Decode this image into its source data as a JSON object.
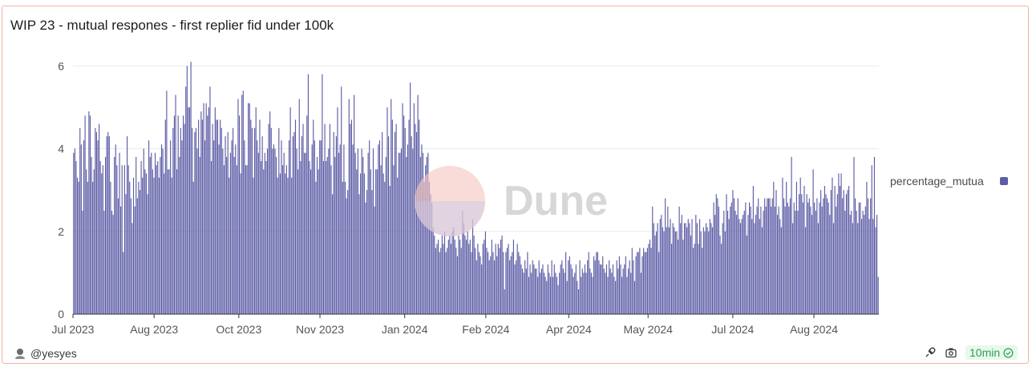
{
  "title": "WIP 23 - mutual respones - first replier fid under 100k",
  "watermark": "Dune",
  "author": "@yesyes",
  "refresh": "10min",
  "colors": {
    "bar": "#5c5ca6",
    "grid": "#ebebeb",
    "accent_badge": "#2f9e4f",
    "border": "#f0b4a6"
  },
  "icons": {
    "avatar": "user-avatar-icon",
    "embed": "embed-icon",
    "camera": "camera-icon",
    "check": "check-circle-icon"
  },
  "chart_data": {
    "type": "bar",
    "title": "WIP 23 - mutual respones - first replier fid under 100k",
    "xlabel": "",
    "ylabel": "",
    "ylim": [
      0,
      6.2
    ],
    "yticks": [
      0,
      2,
      4,
      6
    ],
    "grid": true,
    "legend_position": "right",
    "x_start": "2023-07-01",
    "x_end": "2024-09-20",
    "xtick_labels": [
      "Jul 2023",
      "Aug 2023",
      "Oct 2023",
      "Nov 2023",
      "Jan 2024",
      "Feb 2024",
      "Apr 2024",
      "May 2024",
      "Jul 2024",
      "Aug 2024"
    ],
    "xtick_dates": [
      "2023-07-01",
      "2023-08-15",
      "2023-10-01",
      "2023-11-15",
      "2024-01-01",
      "2024-02-15",
      "2024-04-01",
      "2024-05-15",
      "2024-07-01",
      "2024-08-15"
    ],
    "series": [
      {
        "name": "percentage_mutua",
        "values": [
          3.9,
          4.0,
          3.7,
          3.3,
          3.2,
          4.5,
          4.1,
          2.5,
          4.2,
          4.8,
          3.5,
          3.2,
          4.9,
          4.8,
          3.8,
          3.2,
          3.5,
          4.5,
          4.4,
          4.2,
          4.6,
          3.7,
          3.4,
          3.6,
          2.5,
          3.8,
          4.3,
          4.4,
          4.3,
          3.2,
          2.5,
          2.4,
          3.8,
          4.1,
          3.6,
          2.8,
          3.9,
          2.6,
          3.6,
          1.5,
          3.6,
          2.9,
          4.3,
          3.6,
          3.2,
          2.8,
          2.2,
          3.3,
          2.6,
          3.8,
          2.8,
          3.2,
          3.0,
          3.7,
          3.3,
          4.0,
          3.5,
          3.4,
          2.9,
          4.2,
          3.8,
          3.9,
          3.5,
          3.3,
          3.9,
          3.6,
          3.7,
          3.3,
          3.8,
          4.1,
          4.0,
          3.4,
          4.7,
          5.4,
          3.5,
          3.5,
          4.2,
          3.3,
          4.5,
          4.8,
          5.3,
          3.5,
          4.8,
          3.8,
          4.5,
          4.2,
          4.8,
          4.6,
          5.5,
          6.0,
          5.0,
          5.0,
          6.1,
          4.5,
          3.2,
          4.4,
          4.5,
          4.0,
          4.7,
          3.8,
          4.9,
          4.7,
          5.1,
          4.2,
          5.1,
          4.8,
          5.0,
          5.5,
          3.7,
          4.6,
          4.2,
          5.0,
          4.7,
          4.7,
          4.1,
          4.7,
          4.5,
          4.0,
          3.6,
          4.3,
          3.8,
          4.4,
          3.3,
          3.9,
          4.2,
          4.5,
          3.8,
          4.1,
          3.6,
          5.2,
          4.8,
          3.4,
          5.3,
          5.4,
          4.2,
          3.6,
          3.6,
          5.1,
          5.1,
          4.7,
          4.5,
          3.3,
          4.5,
          5.0,
          4.2,
          3.9,
          4.7,
          3.7,
          4.3,
          3.5,
          3.9,
          3.7,
          4.0,
          4.6,
          4.9,
          4.5,
          4.0,
          4.1,
          4.0,
          3.8,
          3.3,
          4.5,
          3.4,
          4.2,
          3.6,
          3.9,
          3.4,
          3.6,
          3.3,
          4.2,
          5.0,
          3.3,
          4.3,
          4.4,
          4.7,
          4.0,
          3.5,
          5.2,
          3.7,
          4.3,
          4.6,
          3.9,
          3.9,
          4.8,
          5.8,
          3.7,
          3.5,
          4.1,
          4.7,
          4.2,
          3.2,
          3.8,
          3.5,
          4.2,
          4.2,
          5.8,
          3.7,
          4.6,
          3.7,
          3.8,
          4.0,
          4.6,
          3.6,
          2.9,
          4.4,
          3.8,
          4.3,
          5.0,
          3.9,
          4.1,
          5.5,
          3.2,
          4.1,
          3.2,
          2.8,
          3.0,
          5.2,
          4.6,
          4.7,
          4.1,
          5.3,
          3.9,
          3.5,
          4.0,
          2.9,
          3.4,
          4.0,
          3.8,
          3.4,
          2.7,
          3.0,
          3.9,
          4.2,
          3.5,
          3.0,
          4.0,
          2.6,
          3.5,
          3.5,
          4.1,
          4.2,
          3.6,
          4.4,
          3.4,
          3.2,
          3.8,
          5.0,
          4.3,
          3.1,
          5.2,
          4.7,
          3.6,
          4.4,
          4.6,
          3.3,
          3.9,
          3.9,
          4.0,
          5.1,
          4.8,
          4.5,
          3.8,
          4.1,
          4.7,
          5.6,
          4.3,
          4.0,
          5.1,
          4.6,
          4.4,
          5.3,
          4.7,
          3.8,
          4.1,
          3.9,
          3.2,
          3.6,
          3.8,
          3.9,
          3.2,
          2.9,
          2.7,
          2.1,
          1.9,
          1.6,
          1.7,
          1.8,
          1.5,
          1.6,
          1.9,
          1.7,
          2.0,
          1.5,
          1.6,
          1.8,
          1.9,
          1.7,
          2.0,
          2.1,
          1.8,
          1.6,
          1.4,
          1.9,
          1.8,
          1.6,
          2.5,
          2.2,
          1.9,
          1.8,
          2.0,
          1.7,
          1.8,
          1.5,
          2.3,
          1.9,
          1.6,
          1.3,
          1.7,
          1.5,
          1.4,
          1.2,
          1.7,
          1.8,
          2.0,
          1.6,
          1.5,
          1.3,
          1.4,
          1.8,
          1.5,
          1.3,
          1.7,
          1.4,
          1.7,
          1.6,
          1.8,
          1.9,
          1.5,
          0.6,
          1.5,
          1.6,
          1.7,
          1.3,
          1.4,
          1.5,
          1.8,
          1.2,
          1.3,
          1.7,
          1.5,
          1.4,
          1.2,
          1.1,
          1.0,
          1.3,
          1.1,
          1.5,
          0.9,
          1.2,
          1.0,
          1.3,
          1.2,
          1.1,
          1.1,
          0.9,
          1.3,
          1.0,
          1.1,
          1.2,
          1.0,
          0.9,
          0.8,
          1.2,
          1.0,
          0.9,
          1.3,
          0.9,
          1.2,
          1.0,
          0.9,
          0.7,
          1.0,
          1.2,
          1.3,
          1.1,
          1.0,
          1.5,
          0.8,
          1.3,
          1.4,
          1.2,
          1.1,
          0.9,
          1.0,
          1.2,
          0.8,
          0.6,
          1.3,
          0.9,
          1.1,
          1.0,
          1.2,
          1.0,
          1.3,
          1.5,
          1.1,
          1.0,
          0.9,
          1.4,
          1.3,
          1.5,
          1.5,
          1.3,
          1.2,
          1.2,
          1.4,
          1.1,
          1.0,
          1.2,
          0.9,
          1.3,
          1.1,
          1.0,
          1.2,
          0.9,
          0.8,
          1.3,
          1.1,
          1.4,
          1.2,
          0.9,
          1.1,
          1.2,
          1.4,
          0.9,
          1.1,
          1.3,
          1.0,
          1.6,
          1.3,
          0.8,
          1.4,
          1.5,
          1.5,
          1.6,
          1.0,
          1.4,
          1.6,
          1.5,
          1.5,
          1.6,
          1.7,
          1.8,
          1.6,
          2.6,
          2.2,
          1.9,
          2.0,
          2.2,
          1.5,
          2.3,
          2.4,
          2.1,
          2.0,
          2.8,
          2.1,
          2.6,
          2.1,
          2.3,
          1.7,
          2.2,
          2.1,
          2.0,
          2.0,
          1.8,
          2.6,
          2.2,
          2.4,
          1.8,
          2.2,
          2.2,
          2.1,
          2.3,
          2.2,
          1.9,
          2.3,
          1.6,
          1.7,
          2.4,
          2.2,
          1.7,
          2.3,
          2.0,
          1.6,
          2.1,
          2.0,
          2.2,
          2.1,
          2.0,
          2.3,
          2.2,
          2.1,
          2.7,
          2.4,
          2.9,
          2.8,
          2.6,
          1.9,
          1.7,
          2.2,
          2.5,
          2.0,
          2.9,
          2.5,
          2.3,
          2.6,
          2.7,
          3.0,
          2.8,
          2.5,
          2.4,
          2.8,
          2.3,
          2.2,
          2.3,
          2.4,
          2.5,
          2.7,
          1.9,
          2.4,
          2.7,
          2.6,
          2.3,
          3.1,
          2.2,
          2.4,
          2.6,
          2.8,
          2.3,
          2.6,
          2.1,
          2.5,
          2.8,
          2.6,
          2.8,
          2.8,
          2.8,
          2.6,
          2.8,
          3.2,
          2.6,
          3.0,
          2.4,
          2.6,
          2.3,
          2.1,
          3.3,
          2.8,
          2.6,
          3.2,
          2.7,
          2.6,
          2.8,
          3.8,
          2.2,
          2.7,
          2.5,
          3.2,
          2.5,
          2.9,
          3.3,
          2.9,
          2.7,
          3.1,
          2.1,
          2.9,
          2.7,
          2.8,
          2.6,
          2.4,
          3.5,
          2.7,
          2.5,
          2.8,
          2.2,
          2.7,
          3.0,
          2.6,
          2.8,
          3.1,
          2.9,
          2.8,
          2.7,
          2.4,
          3.0,
          3.3,
          2.2,
          3.1,
          2.6,
          2.9,
          3.4,
          3.1,
          3.4,
          2.8,
          3.0,
          2.5,
          2.9,
          3.0,
          3.1,
          2.4,
          2.5,
          2.2,
          3.8,
          2.8,
          2.5,
          2.2,
          2.7,
          2.7,
          2.3,
          2.5,
          2.4,
          2.6,
          3.2,
          2.8,
          2.3,
          2.8,
          3.6,
          2.3,
          3.8,
          2.1,
          2.4,
          0.9
        ]
      }
    ]
  }
}
